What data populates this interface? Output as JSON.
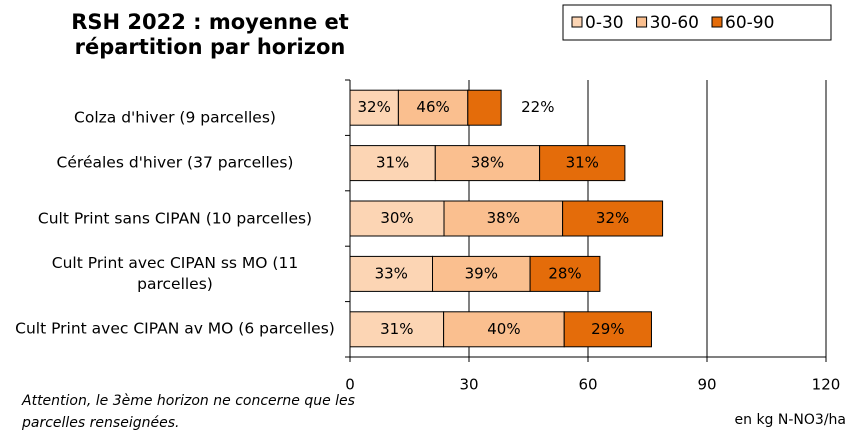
{
  "chart_data": {
    "type": "stacked-barh",
    "title": "RSH 2022  : moyenne et répartition par horizon",
    "note": "Attention, le 3ème horizon ne concerne que les parcelles renseignées.",
    "xlabel": "en kg N-NO3/ha",
    "categories": [
      "Colza d'hiver (9 parcelles)",
      "Céréales d'hiver (37 parcelles)",
      "Cult Print sans CIPAN (10 parcelles)",
      "Cult Print avec CIPAN ss MO (11 parcelles)",
      "Cult Print avec CIPAN av MO (6 parcelles)"
    ],
    "series": [
      {
        "name": "0-30",
        "color": "#fcd5b4",
        "values": [
          12.2,
          21.5,
          23.7,
          20.8,
          23.6
        ],
        "value_labels": [
          "32%",
          "31%",
          "30%",
          "33%",
          "31%"
        ]
      },
      {
        "name": "30-60",
        "color": "#fabf8f",
        "values": [
          17.5,
          26.3,
          29.9,
          24.6,
          30.4
        ],
        "value_labels": [
          "46%",
          "38%",
          "38%",
          "39%",
          "40%"
        ]
      },
      {
        "name": "60-90",
        "color": "#e46c0a",
        "values": [
          8.4,
          21.5,
          25.2,
          17.6,
          22.0
        ],
        "value_labels": [
          "22%",
          "31%",
          "32%",
          "28%",
          "29%"
        ]
      }
    ],
    "xlim": [
      0,
      120
    ],
    "xticks": [
      0,
      30,
      60,
      90,
      120
    ],
    "grid": true,
    "legend": "top-right"
  }
}
